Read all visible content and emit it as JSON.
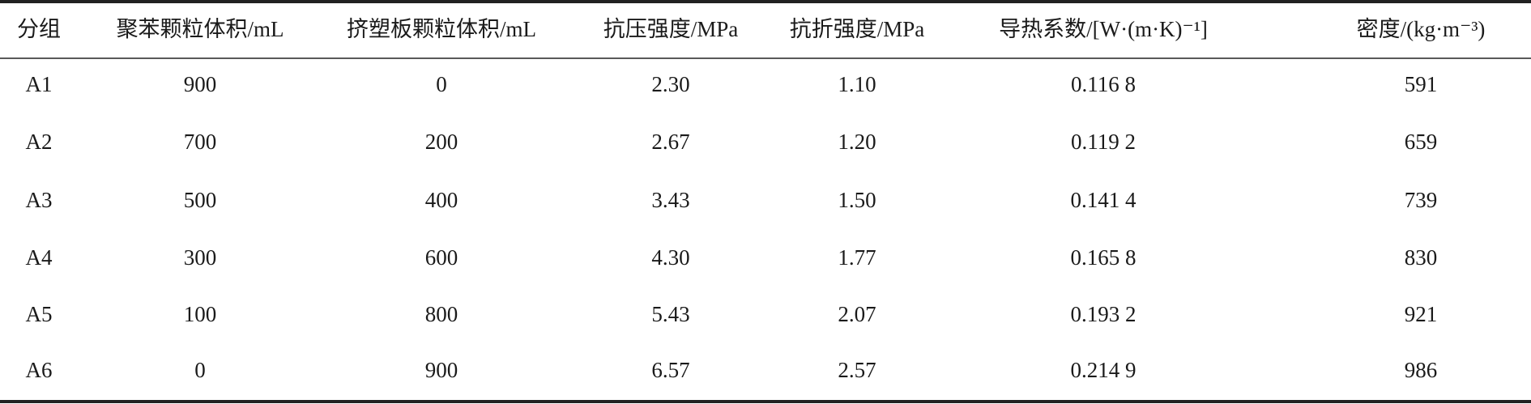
{
  "table": {
    "header": [
      "分组",
      "聚苯颗粒体积/mL",
      "挤塑板颗粒体积/mL",
      "抗压强度/MPa",
      "抗折强度/MPa",
      "导热系数/[W·(m·K)⁻¹]",
      "密度/(kg·m⁻³)"
    ],
    "rows": [
      [
        "A1",
        "900",
        "0",
        "2.30",
        "1.10",
        "0.116 8",
        "591"
      ],
      [
        "A2",
        "700",
        "200",
        "2.67",
        "1.20",
        "0.119 2",
        "659"
      ],
      [
        "A3",
        "500",
        "400",
        "3.43",
        "1.50",
        "0.141 4",
        "739"
      ],
      [
        "A4",
        "300",
        "600",
        "4.30",
        "1.77",
        "0.165 8",
        "830"
      ],
      [
        "A5",
        "100",
        "800",
        "5.43",
        "2.07",
        "0.193 2",
        "921"
      ],
      [
        "A6",
        "0",
        "900",
        "6.57",
        "2.57",
        "0.214 9",
        "986"
      ]
    ]
  }
}
